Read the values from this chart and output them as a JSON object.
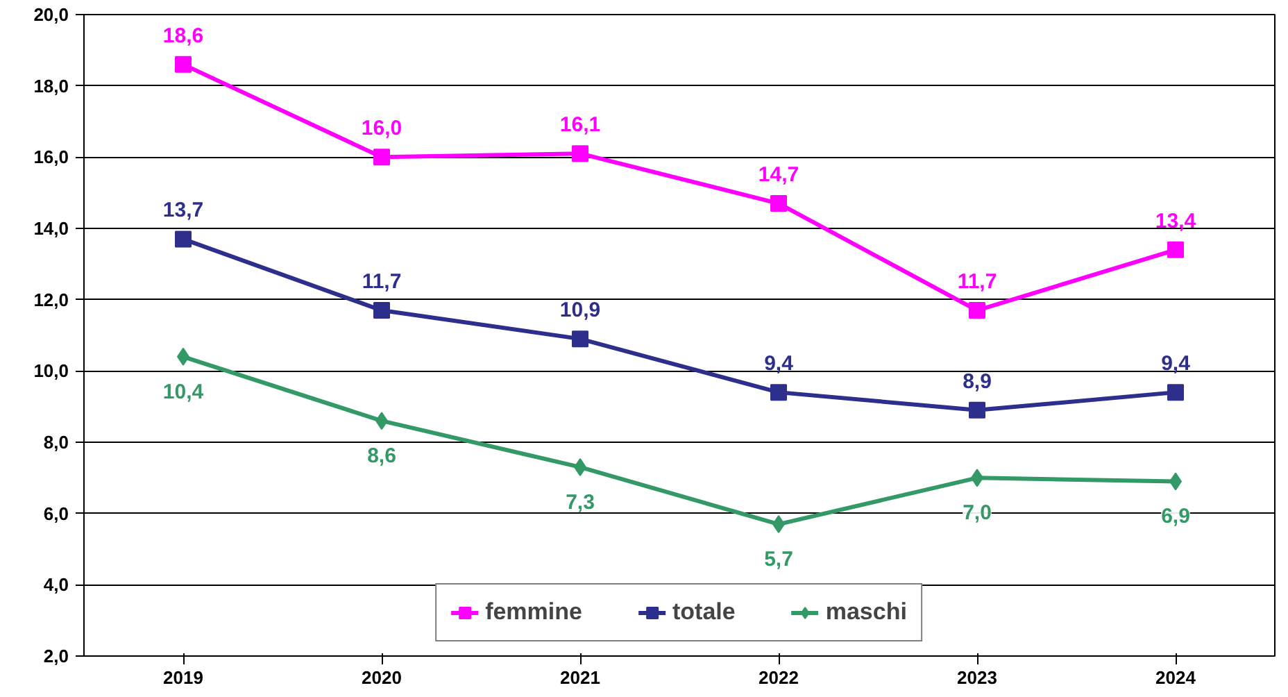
{
  "chart_data": {
    "type": "line",
    "categories": [
      "2019",
      "2020",
      "2021",
      "2022",
      "2023",
      "2024"
    ],
    "series": [
      {
        "name": "femmine",
        "color": "#ff00ff",
        "marker": "square",
        "values": [
          18.6,
          16.0,
          16.1,
          14.7,
          11.7,
          13.4
        ],
        "value_labels": [
          "18,6",
          "16,0",
          "16,1",
          "14,7",
          "11,7",
          "13,4"
        ]
      },
      {
        "name": "totale",
        "color": "#2e2e8c",
        "marker": "square",
        "values": [
          13.7,
          11.7,
          10.9,
          9.4,
          8.9,
          9.4
        ],
        "value_labels": [
          "13,7",
          "11,7",
          "10,9",
          "9,4",
          "8,9",
          "9,4"
        ]
      },
      {
        "name": "maschi",
        "color": "#339966",
        "marker": "diamond",
        "values": [
          10.4,
          8.6,
          7.3,
          5.7,
          7.0,
          6.9
        ],
        "value_labels": [
          "10,4",
          "8,6",
          "7,3",
          "5,7",
          "7,0",
          "6,9"
        ]
      }
    ],
    "ylim": [
      2,
      20
    ],
    "yticks": [
      {
        "value": 2,
        "label": "2,0"
      },
      {
        "value": 4,
        "label": "4,0"
      },
      {
        "value": 6,
        "label": "6,0"
      },
      {
        "value": 8,
        "label": "8,0"
      },
      {
        "value": 10,
        "label": "10,0"
      },
      {
        "value": 12,
        "label": "12,0"
      },
      {
        "value": 14,
        "label": "14,0"
      },
      {
        "value": 16,
        "label": "16,0"
      },
      {
        "value": 18,
        "label": "18,0"
      },
      {
        "value": 20,
        "label": "20,0"
      }
    ],
    "grid": "y",
    "legend": "bottom"
  }
}
